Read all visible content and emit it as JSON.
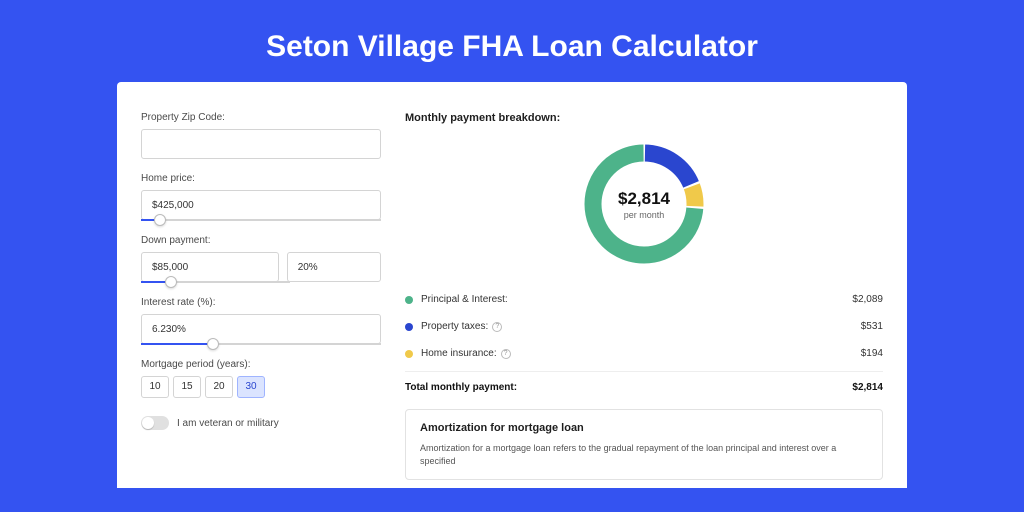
{
  "page": {
    "title": "Seton Village FHA Loan Calculator"
  },
  "colors": {
    "background": "#3453f1",
    "panel": "#ffffff",
    "accent": "#3453f1",
    "principal": "#4db38a",
    "taxes": "#2a46cf",
    "insurance": "#f0c94a"
  },
  "form": {
    "zip": {
      "label": "Property Zip Code:",
      "value": ""
    },
    "home_price": {
      "label": "Home price:",
      "value": "$425,000",
      "slider_pct": 8
    },
    "down_payment": {
      "label": "Down payment:",
      "amount": "$85,000",
      "percent": "20%",
      "slider_pct": 20
    },
    "interest": {
      "label": "Interest rate (%):",
      "value": "6.230%",
      "slider_pct": 30
    },
    "period": {
      "label": "Mortgage period (years):",
      "options": [
        "10",
        "15",
        "20",
        "30"
      ],
      "selected": "30"
    },
    "veteran": {
      "label": "I am veteran or military",
      "checked": false
    }
  },
  "breakdown": {
    "title": "Monthly payment breakdown:",
    "center_amount": "$2,814",
    "center_label": "per month",
    "items": [
      {
        "key": "principal",
        "label": "Principal & Interest:",
        "value": "$2,089",
        "pct": 74,
        "color": "#4db38a",
        "has_info": false
      },
      {
        "key": "taxes",
        "label": "Property taxes:",
        "value": "$531",
        "pct": 19,
        "color": "#2a46cf",
        "has_info": true
      },
      {
        "key": "insurance",
        "label": "Home insurance:",
        "value": "$194",
        "pct": 7,
        "color": "#f0c94a",
        "has_info": true
      }
    ],
    "total": {
      "label": "Total monthly payment:",
      "value": "$2,814"
    }
  },
  "amortization": {
    "title": "Amortization for mortgage loan",
    "text": "Amortization for a mortgage loan refers to the gradual repayment of the loan principal and interest over a specified"
  },
  "donut": {
    "ring_width": 17,
    "radius": 51,
    "gap_color": "#ffffff"
  }
}
